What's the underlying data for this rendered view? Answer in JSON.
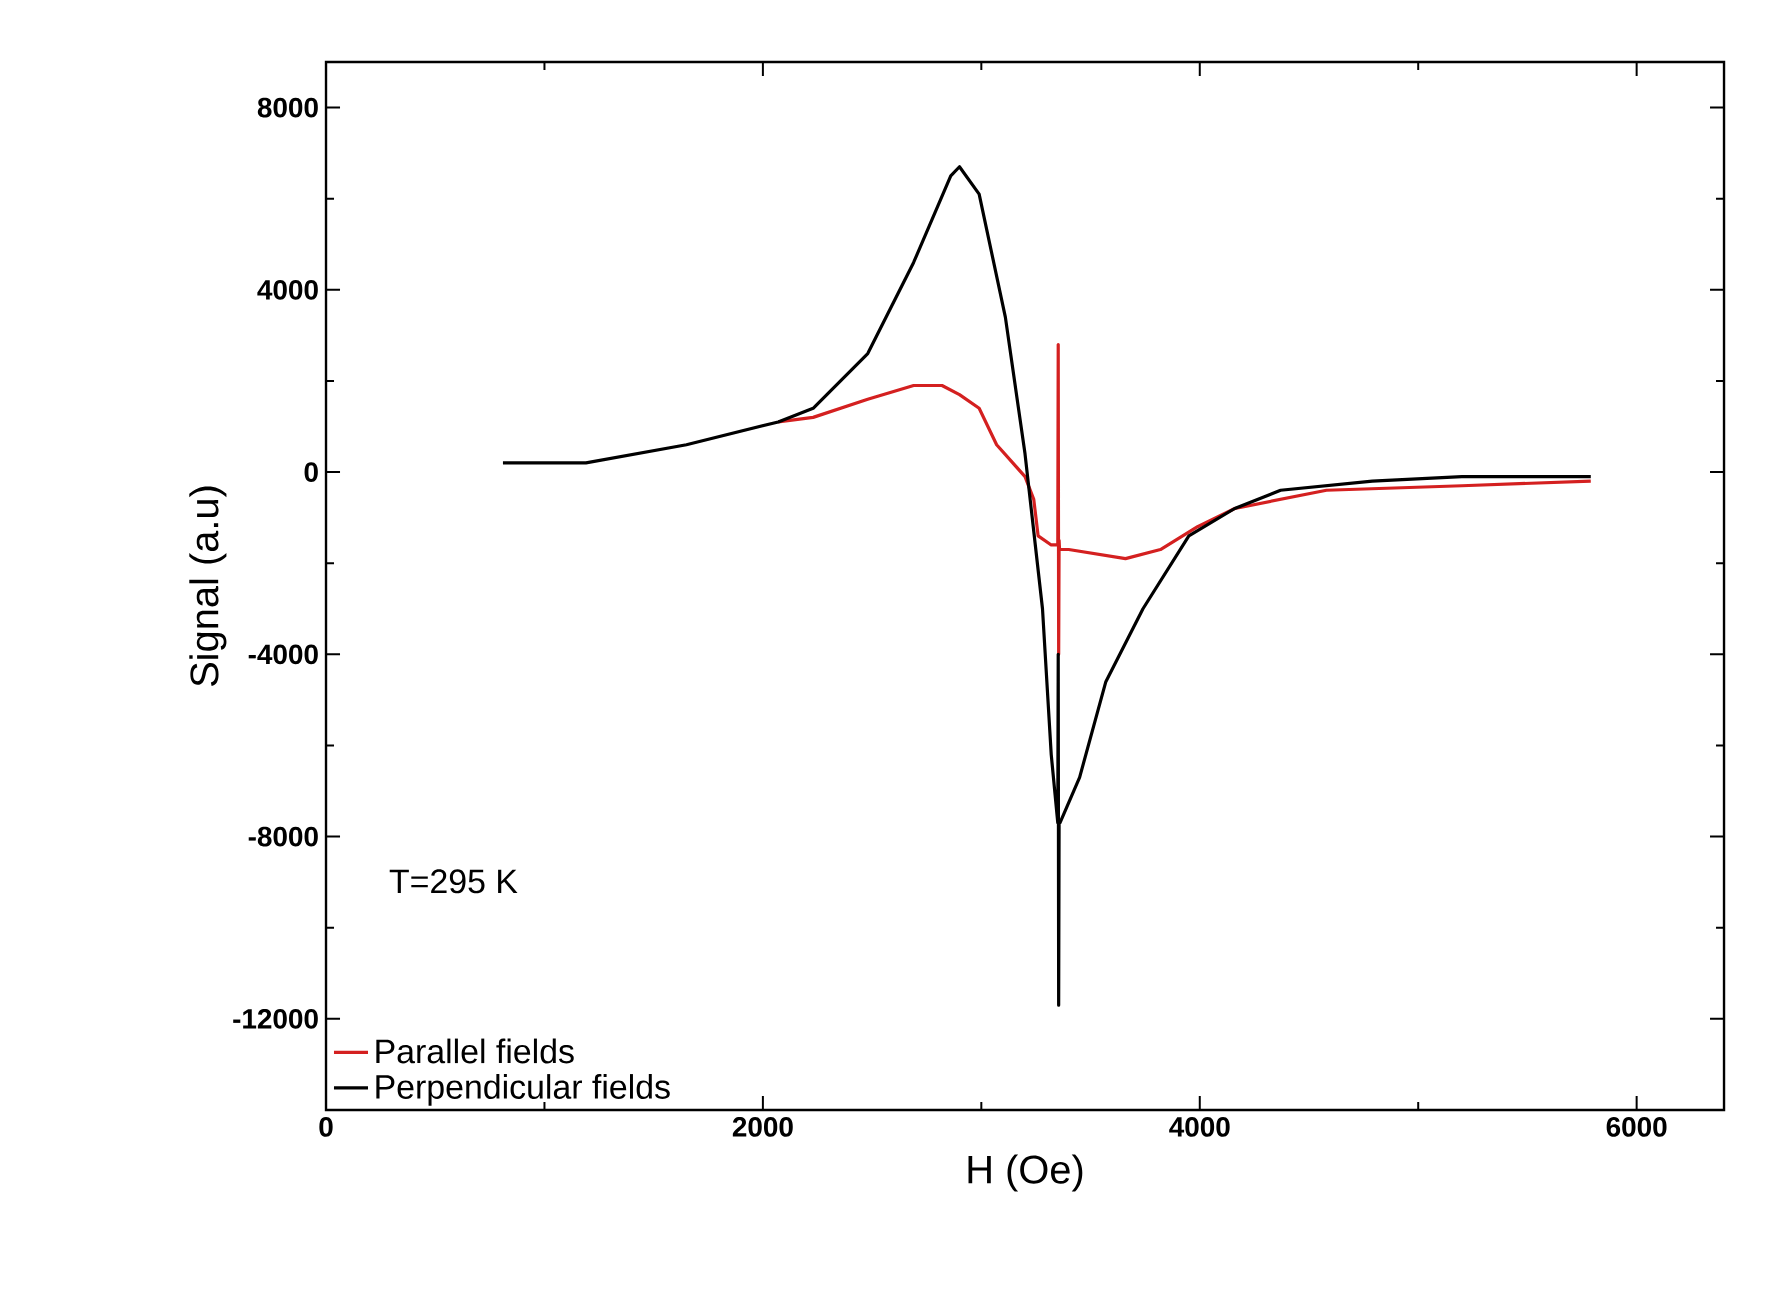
{
  "chart_data": {
    "type": "line",
    "xlabel": "H (Oe)",
    "ylabel": "Signal (a.u)",
    "annotations": [
      "T=295 K"
    ],
    "xlim": [
      0,
      6400
    ],
    "xticks": [
      0,
      2000,
      4000,
      6000
    ],
    "ylim": [
      -14000,
      9000
    ],
    "yticks": [
      -12000,
      -8000,
      -4000,
      0,
      4000,
      8000
    ],
    "grid": false,
    "legend": "bottom left",
    "marker": "none",
    "line_style": "solid",
    "series": [
      {
        "name": "Parallel fields",
        "color": "#d42020",
        "x": [
          2070,
          2230,
          2480,
          2690,
          2820,
          2900,
          2990,
          3070,
          3200,
          3240,
          3260,
          3320,
          3350,
          3352,
          3354,
          3356,
          3358,
          3400,
          3530,
          3660,
          3820,
          3990,
          4160,
          4580,
          5200,
          5790
        ],
        "values": [
          1100,
          1200,
          1600,
          1900,
          1900,
          1700,
          1400,
          600,
          -100,
          -600,
          -1400,
          -1600,
          -1600,
          2800,
          -4000,
          -1500,
          -1700,
          -1700,
          -1800,
          -1900,
          -1700,
          -1200,
          -800,
          -400,
          -300,
          -200
        ]
      },
      {
        "name": "Perpendicular fields",
        "color": "#000000",
        "x": [
          810,
          1190,
          1650,
          2070,
          2230,
          2480,
          2690,
          2860,
          2900,
          2990,
          3110,
          3200,
          3280,
          3320,
          3350,
          3352,
          3354,
          3356,
          3360,
          3450,
          3570,
          3740,
          3950,
          4160,
          4370,
          4790,
          5200,
          5790
        ],
        "values": [
          200,
          200,
          600,
          1100,
          1400,
          2600,
          4600,
          6500,
          6700,
          6100,
          3400,
          400,
          -3000,
          -6200,
          -7700,
          -4000,
          -11700,
          -7700,
          -7700,
          -6700,
          -4600,
          -3000,
          -1400,
          -800,
          -400,
          -200,
          -100,
          -100
        ]
      }
    ]
  }
}
